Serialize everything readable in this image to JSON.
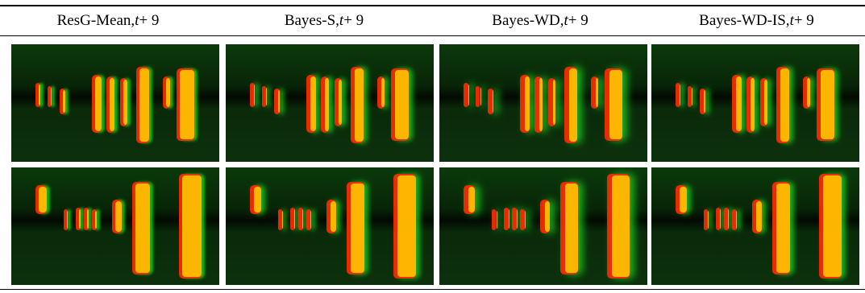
{
  "table": {
    "columns": [
      {
        "label": "ResG-Mean, ",
        "var": "t",
        "suffix": " + 9"
      },
      {
        "label": "Bayes-S, ",
        "var": "t",
        "suffix": " + 9"
      },
      {
        "label": "Bayes-WD, ",
        "var": "t",
        "suffix": " + 9"
      },
      {
        "label": "Bayes-WD-IS, ",
        "var": "t",
        "suffix": " + 9"
      }
    ]
  },
  "colors": {
    "background": "#0a2a0a",
    "ground_truth": "#ff2a00",
    "prediction": "#22dd22",
    "overlap": "#ffcc00"
  }
}
